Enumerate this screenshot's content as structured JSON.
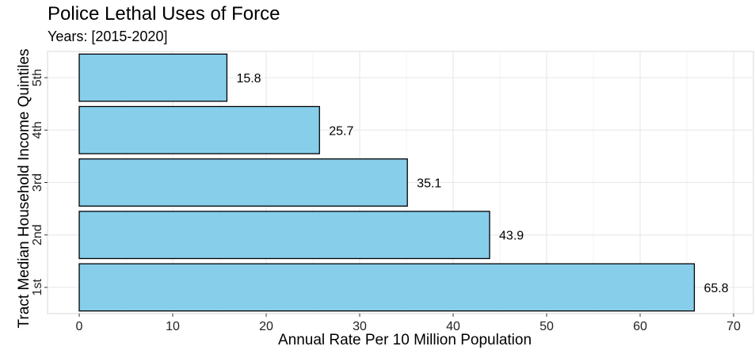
{
  "chart_data": {
    "type": "bar",
    "orientation": "horizontal",
    "title": "Police Lethal Uses of Force",
    "subtitle": "Years: [2015-2020]",
    "xlabel": "Annual Rate Per 10 Million Population",
    "ylabel": "Tract Median Household Income Quintiles",
    "categories": [
      "1st",
      "2nd",
      "3rd",
      "4th",
      "5th"
    ],
    "values": [
      65.8,
      43.9,
      35.1,
      25.7,
      15.8
    ],
    "data_labels": [
      "65.8",
      "43.9",
      "35.1",
      "25.7",
      "15.8"
    ],
    "xlim": [
      0,
      70
    ],
    "xticks": [
      0,
      10,
      20,
      30,
      40,
      50,
      60,
      70
    ],
    "grid": true,
    "legend": "none",
    "bar_color": "#87CEEB",
    "bar_edge_color": "#000000"
  }
}
